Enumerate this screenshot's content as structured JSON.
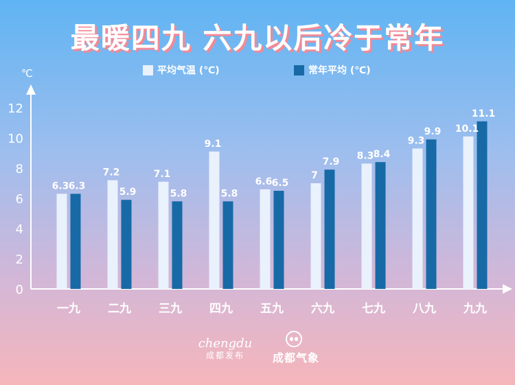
{
  "title": "最暖四九 六九以后冷于常年",
  "colors": {
    "series_a": "#e9f1fc",
    "series_b": "#176aa6",
    "axis": "#ffffff",
    "title_shadow": "#f08a96"
  },
  "chart_data": {
    "type": "bar",
    "title": "最暖四九 六九以后冷于常年",
    "ylabel": "℃",
    "xlabel": "",
    "ylim": [
      0,
      12
    ],
    "yticks": [
      0,
      2,
      4,
      6,
      8,
      10,
      12
    ],
    "grid": false,
    "legend": "top",
    "categories": [
      "一九",
      "二九",
      "三九",
      "四九",
      "五九",
      "六九",
      "七九",
      "八九",
      "九九"
    ],
    "series": [
      {
        "name": "平均气温 (℃)",
        "values": [
          6.3,
          7.2,
          7.1,
          9.1,
          6.6,
          7,
          8.3,
          9.3,
          10.1
        ]
      },
      {
        "name": "常年平均 (℃)",
        "values": [
          6.3,
          5.9,
          5.8,
          5.8,
          6.5,
          7.9,
          8.4,
          9.9,
          11.1
        ]
      }
    ]
  },
  "logos": {
    "chengdu_en": "chengdu",
    "chengdu_cn": "成都发布",
    "weather_cn": "成都气象"
  }
}
